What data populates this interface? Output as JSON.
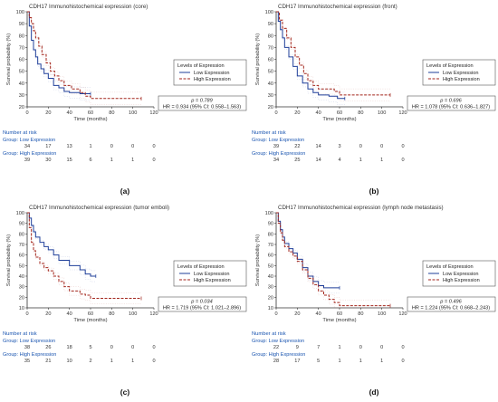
{
  "figure": {
    "colors": {
      "low": "#1f3f9a",
      "high": "#a3261c",
      "axis": "#333333",
      "risk_label": "#1a55b0"
    }
  },
  "chart_data": [
    {
      "type": "line",
      "panel_label": "(a)",
      "title": "CDH17 Immunohistochemical expression (core)",
      "xlabel": "Time (months)",
      "ylabel": "Survival probability (%)",
      "xlim": [
        0,
        120
      ],
      "ylim": [
        20,
        100
      ],
      "x_ticks": [
        0,
        20,
        40,
        60,
        80,
        100,
        120
      ],
      "y_ticks": [
        20,
        30,
        40,
        50,
        60,
        70,
        80,
        90,
        100
      ],
      "legend": {
        "title": "Levels of Expression",
        "placement": "right",
        "entries": [
          "Low Expression",
          "High Expression"
        ]
      },
      "stats": {
        "p": "p = 0.789",
        "hr": "HR = 0.934 (95% CI: 0.558–1.563)"
      },
      "series": [
        {
          "name": "Low Expression",
          "x": [
            0,
            2,
            4,
            6,
            8,
            10,
            13,
            16,
            20,
            25,
            30,
            35,
            40,
            50,
            60
          ],
          "y": [
            100,
            88,
            76,
            68,
            62,
            56,
            52,
            48,
            44,
            38,
            36,
            33,
            32,
            31,
            31
          ]
        },
        {
          "name": "High Expression",
          "x": [
            0,
            2,
            4,
            6,
            8,
            11,
            14,
            18,
            22,
            26,
            30,
            35,
            42,
            50,
            55,
            60,
            108
          ],
          "y": [
            100,
            95,
            90,
            84,
            78,
            71,
            64,
            57,
            50,
            46,
            42,
            38,
            35,
            32,
            29,
            27,
            27
          ]
        }
      ],
      "risk_table": {
        "header": "Number at risk",
        "groups": [
          {
            "label": "Group: Low Expression",
            "values": [
              "34",
              "17",
              "13",
              "1",
              "0",
              "0",
              "0"
            ]
          },
          {
            "label": "Group: High Expression",
            "values": [
              "39",
              "30",
              "15",
              "6",
              "1",
              "1",
              "0"
            ]
          }
        ]
      }
    },
    {
      "type": "line",
      "panel_label": "(b)",
      "title": "CDH17 Immunohistochemical expression (front)",
      "xlabel": "Time (months)",
      "ylabel": "Survival probability (%)",
      "xlim": [
        0,
        120
      ],
      "ylim": [
        20,
        100
      ],
      "x_ticks": [
        0,
        20,
        40,
        60,
        80,
        100,
        120
      ],
      "y_ticks": [
        20,
        30,
        40,
        50,
        60,
        70,
        80,
        90,
        100
      ],
      "legend": {
        "title": "Levels of Expression",
        "placement": "right",
        "entries": [
          "Low Expression",
          "High Expression"
        ]
      },
      "stats": {
        "p": "p = 0.696",
        "hr": "HR = 1.078 (95% CI: 0.636–1.827)"
      },
      "series": [
        {
          "name": "Low Expression",
          "x": [
            0,
            2,
            4,
            6,
            8,
            12,
            16,
            20,
            25,
            30,
            35,
            40,
            50,
            58,
            65
          ],
          "y": [
            100,
            92,
            85,
            78,
            70,
            62,
            54,
            46,
            40,
            35,
            32,
            30,
            29,
            27,
            27
          ]
        },
        {
          "name": "High Expression",
          "x": [
            0,
            3,
            6,
            10,
            14,
            18,
            22,
            26,
            30,
            35,
            40,
            55,
            60,
            108
          ],
          "y": [
            100,
            93,
            86,
            78,
            70,
            62,
            55,
            48,
            42,
            38,
            35,
            33,
            30,
            30
          ]
        }
      ],
      "risk_table": {
        "header": "Number at risk",
        "groups": [
          {
            "label": "Group: Low Expression",
            "values": [
              "39",
              "22",
              "14",
              "3",
              "0",
              "0",
              "0"
            ]
          },
          {
            "label": "Group: High Expression",
            "values": [
              "34",
              "25",
              "14",
              "4",
              "1",
              "1",
              "0"
            ]
          }
        ]
      }
    },
    {
      "type": "line",
      "panel_label": "(c)",
      "title": "CDH17 Immunohistochemical expression (tumor emboli)",
      "xlabel": "Time (months)",
      "ylabel": "Survival probability (%)",
      "xlim": [
        0,
        120
      ],
      "ylim": [
        10,
        100
      ],
      "x_ticks": [
        0,
        20,
        40,
        60,
        80,
        100,
        120
      ],
      "y_ticks": [
        10,
        20,
        30,
        40,
        50,
        60,
        70,
        80,
        90,
        100
      ],
      "legend": {
        "title": "Levels of Expression",
        "placement": "right",
        "entries": [
          "Low Expression",
          "High Expression"
        ]
      },
      "stats": {
        "p": "p = 0.034",
        "hr": "HR = 1.719 (95% CI: 1.021–2.896)"
      },
      "series": [
        {
          "name": "Low Expression",
          "x": [
            0,
            2,
            4,
            6,
            8,
            12,
            16,
            20,
            25,
            30,
            40,
            50,
            55,
            60,
            65
          ],
          "y": [
            100,
            95,
            88,
            82,
            77,
            72,
            68,
            65,
            60,
            55,
            50,
            46,
            42,
            40,
            40
          ]
        },
        {
          "name": "High Expression",
          "x": [
            0,
            2,
            4,
            6,
            8,
            12,
            16,
            20,
            25,
            30,
            35,
            40,
            50,
            55,
            60,
            108
          ],
          "y": [
            100,
            86,
            72,
            64,
            58,
            52,
            48,
            45,
            40,
            35,
            30,
            26,
            23,
            22,
            19,
            19
          ]
        }
      ],
      "risk_table": {
        "header": "Number at risk",
        "groups": [
          {
            "label": "Group: Low Expression",
            "values": [
              "38",
              "26",
              "18",
              "5",
              "0",
              "0",
              "0"
            ]
          },
          {
            "label": "Group: High Expression",
            "values": [
              "35",
              "21",
              "10",
              "2",
              "1",
              "1",
              "0"
            ]
          }
        ]
      }
    },
    {
      "type": "line",
      "panel_label": "(d)",
      "title": "CDH17 Immunohistochemical expression (lymph node metastasis)",
      "xlabel": "Time (months)",
      "ylabel": "Survival probability (%)",
      "xlim": [
        0,
        120
      ],
      "ylim": [
        10,
        100
      ],
      "x_ticks": [
        0,
        20,
        40,
        60,
        80,
        100,
        120
      ],
      "y_ticks": [
        10,
        20,
        30,
        40,
        50,
        60,
        70,
        80,
        90,
        100
      ],
      "legend": {
        "title": "Levels of Expression",
        "placement": "right",
        "entries": [
          "Low Expression",
          "High Expression"
        ]
      },
      "stats": {
        "p": "p = 0.496",
        "hr": "HR = 1.224 (95% CI: 0.668–2.243)"
      },
      "series": [
        {
          "name": "Low Expression",
          "x": [
            0,
            2,
            4,
            6,
            8,
            12,
            16,
            20,
            25,
            30,
            35,
            40,
            45,
            60
          ],
          "y": [
            100,
            92,
            84,
            77,
            71,
            66,
            62,
            56,
            48,
            40,
            35,
            31,
            29,
            29
          ]
        },
        {
          "name": "High Expression",
          "x": [
            0,
            2,
            4,
            6,
            8,
            12,
            16,
            20,
            25,
            30,
            35,
            40,
            45,
            50,
            55,
            60,
            108
          ],
          "y": [
            100,
            90,
            81,
            74,
            68,
            63,
            59,
            54,
            46,
            38,
            32,
            26,
            22,
            18,
            15,
            12,
            12
          ]
        }
      ],
      "risk_table": {
        "header": "Number at risk",
        "groups": [
          {
            "label": "Group: Low Expression",
            "values": [
              "22",
              "9",
              "7",
              "1",
              "0",
              "0",
              "0"
            ]
          },
          {
            "label": "Group: High Expression",
            "values": [
              "28",
              "17",
              "5",
              "1",
              "1",
              "1",
              "0"
            ]
          }
        ]
      }
    }
  ]
}
